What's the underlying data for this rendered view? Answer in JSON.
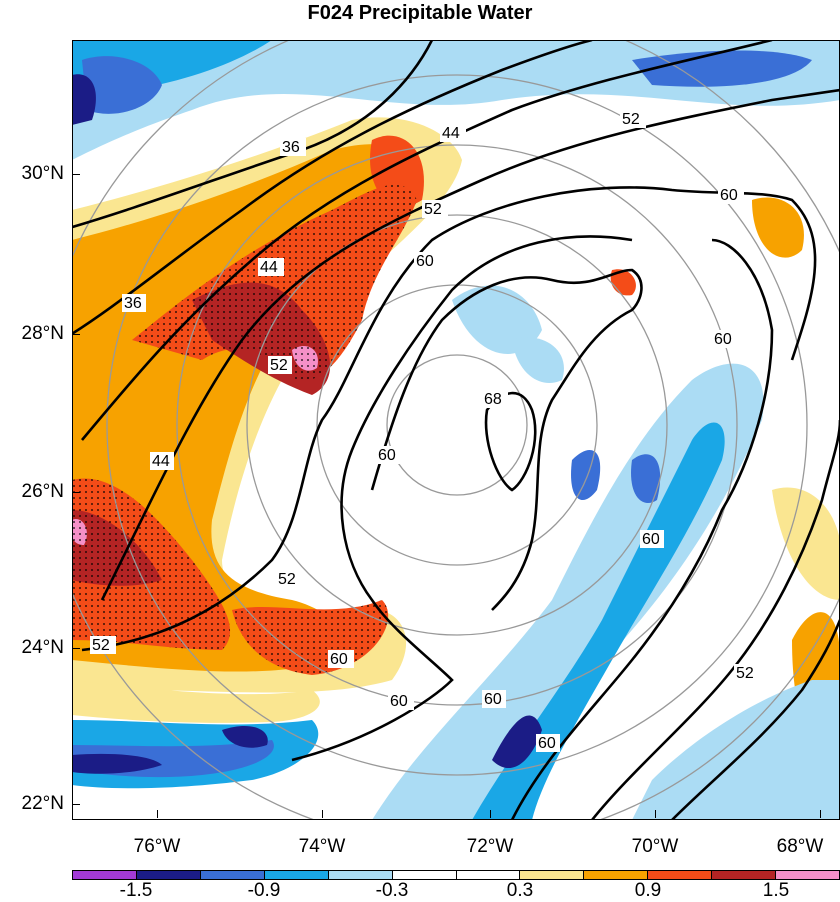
{
  "title": "F024 Precipitable Water",
  "lat_labels": [
    "30°N",
    "28°N",
    "26°N",
    "24°N",
    "22°N"
  ],
  "lon_labels": [
    "76°W",
    "74°W",
    "72°W",
    "70°W",
    "68°W"
  ],
  "contour_labels": [
    "36",
    "44",
    "52",
    "60",
    "68"
  ],
  "colorbar": {
    "colors": [
      "#a23ad6",
      "#1b1c86",
      "#3a6fd6",
      "#1aa7e6",
      "#abdcf4",
      "#ffffff",
      "#ffffff",
      "#fae691",
      "#f7a200",
      "#f44c18",
      "#b42424",
      "#f590c8"
    ],
    "labels": [
      "-1.5",
      "-0.9",
      "-0.3",
      "0.3",
      "0.9",
      "1.5"
    ]
  }
}
